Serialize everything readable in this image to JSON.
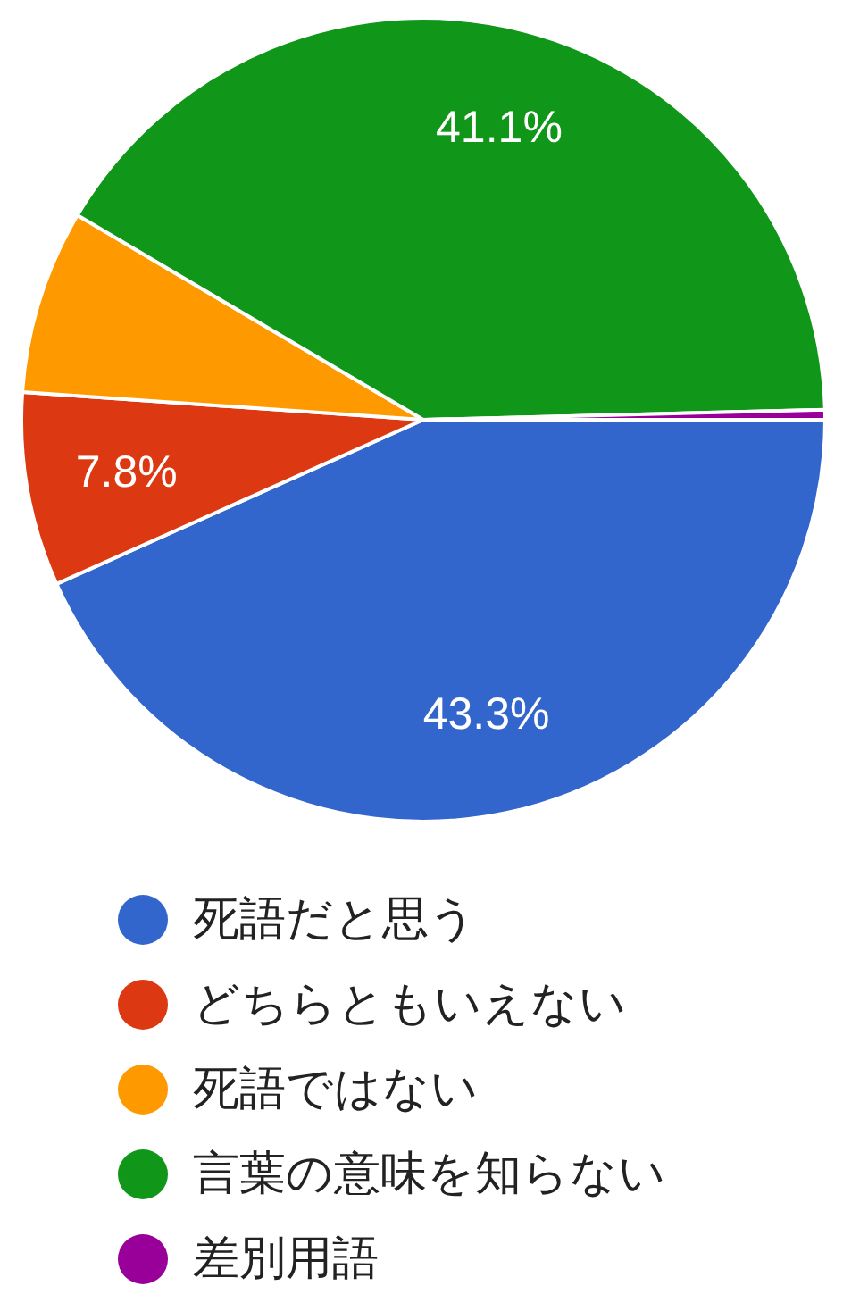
{
  "chart_data": {
    "type": "pie",
    "categories": [
      "死語だと思う",
      "どちらともいえない",
      "死語ではない",
      "言葉の意味を知らない",
      "差別用語"
    ],
    "values": [
      43.3,
      7.8,
      7.4,
      41.1,
      0.4
    ],
    "colors": [
      "#3366cc",
      "#dc3912",
      "#ff9900",
      "#109618",
      "#990099"
    ],
    "value_labels": [
      "43.3%",
      "7.8%",
      null,
      "41.1%",
      null
    ],
    "legend": "bottom"
  }
}
